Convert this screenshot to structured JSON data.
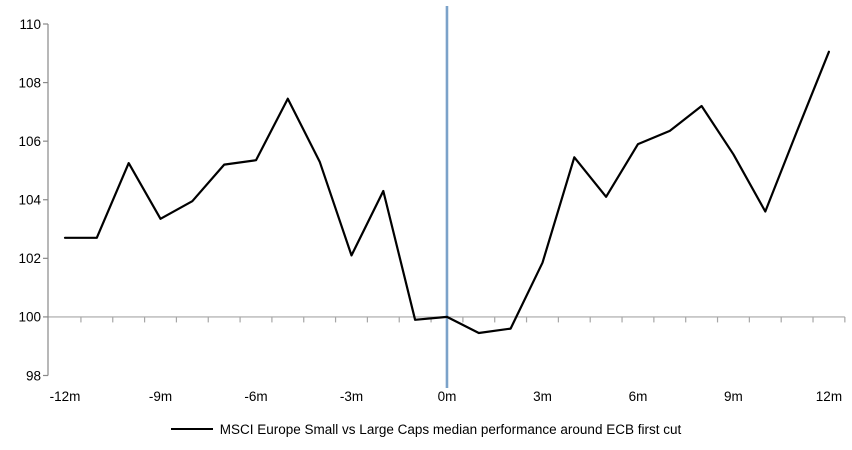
{
  "chart_data": {
    "type": "line",
    "title": "",
    "legend_label": "MSCI Europe Small vs Large Caps median performance around ECB first cut",
    "legend_position": "bottom",
    "x": [
      -12,
      -11,
      -10,
      -9,
      -8,
      -7,
      -6,
      -5,
      -4,
      -3,
      -2,
      -1,
      0,
      1,
      2,
      3,
      4,
      5,
      6,
      7,
      8,
      9,
      10,
      11,
      12
    ],
    "series": [
      {
        "name": "MSCI Europe Small vs Large Caps median performance around ECB first cut",
        "values": [
          102.7,
          102.7,
          105.25,
          103.35,
          103.95,
          105.2,
          105.35,
          107.45,
          105.3,
          102.1,
          104.3,
          99.9,
          100.0,
          99.45,
          99.6,
          101.85,
          105.45,
          104.1,
          105.9,
          106.35,
          107.2,
          105.55,
          103.6,
          106.35,
          109.05
        ]
      }
    ],
    "ylim": [
      98,
      110
    ],
    "y_ticks": [
      110,
      108,
      106,
      104,
      102,
      100,
      98
    ],
    "x_ticks": [
      {
        "month": -12,
        "label": "-12m"
      },
      {
        "month": -9,
        "label": "-9m"
      },
      {
        "month": -6,
        "label": "-6m"
      },
      {
        "month": -3,
        "label": "-3m"
      },
      {
        "month": 0,
        "label": "0m"
      },
      {
        "month": 3,
        "label": "3m"
      },
      {
        "month": 6,
        "label": "6m"
      },
      {
        "month": 9,
        "label": "9m"
      },
      {
        "month": 12,
        "label": "12m"
      }
    ],
    "baseline_value": 100,
    "event_line_month": 0,
    "grid": "baseline-only",
    "colors": {
      "series_line": "#000000",
      "event_line": "#7BA2C9",
      "axis": "#898989",
      "baseline": "#A6A6A6",
      "tick": "#A6A6A6",
      "label_text": "#000000"
    }
  }
}
